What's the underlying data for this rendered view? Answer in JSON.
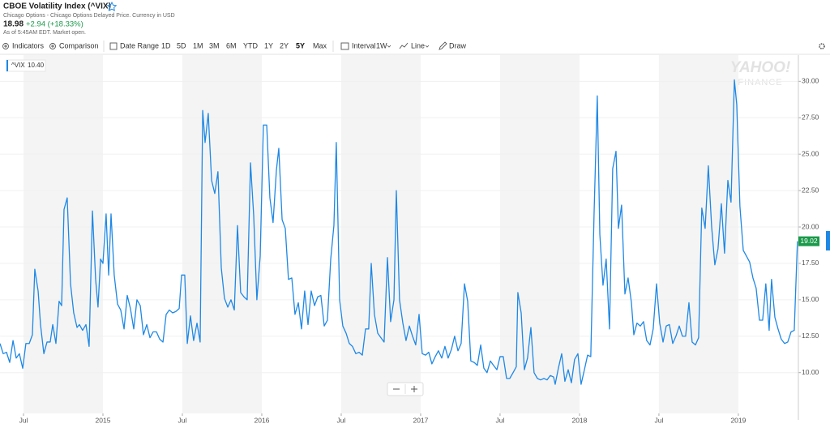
{
  "header": {
    "title": "CBOE Volatility Index (^VIX)",
    "subtitle": "Chicago Options - Chicago Options Delayed Price. Currency in USD",
    "price": "18.98",
    "change": "+2.94 (+18.33%)",
    "as_of": "As of 5:45AM EDT. Market open."
  },
  "toolbar": {
    "indicators": "Indicators",
    "comparison": "Comparison",
    "date_range": "Date Range",
    "ranges": [
      "1D",
      "5D",
      "1M",
      "3M",
      "6M",
      "YTD",
      "1Y",
      "2Y",
      "5Y",
      "Max"
    ],
    "interval": "Interval",
    "interval_value": "1W",
    "line": "Line",
    "draw": "Draw"
  },
  "watermark": [
    "YAHOO!",
    "FINANCE"
  ],
  "chart_data": {
    "type": "line",
    "legend_value": "10.40",
    "current_label": "19.02",
    "xlim": [
      2014.352,
      2019.378
    ],
    "xticks": [
      {
        "value": 2014.5,
        "label": "Jul"
      },
      2015,
      {
        "value": 2015.5,
        "label": "Jul"
      },
      2016,
      {
        "value": 2016.5,
        "label": "Jul"
      },
      2017,
      {
        "value": 2017.5,
        "label": "Jul"
      },
      2018,
      {
        "value": 2018.5,
        "label": "Jul"
      },
      2019
    ],
    "ylim": [
      7.2,
      31.8
    ],
    "yticks": [
      {
        "value": 10,
        "label": "10.00"
      },
      {
        "value": 12.5,
        "label": "12.50"
      },
      {
        "value": 15,
        "label": "15.00"
      },
      {
        "value": 17.5,
        "label": "17.50"
      },
      {
        "value": 20,
        "label": "20.00"
      },
      {
        "value": 22.5,
        "label": "22.50"
      },
      {
        "value": 25,
        "label": "25.00"
      },
      {
        "value": 27.5,
        "label": "27.50"
      },
      {
        "value": 30,
        "label": "30.00"
      }
    ],
    "grid": true,
    "x": [
      2014.352,
      2014.372,
      2014.393,
      2014.413,
      2014.434,
      2014.454,
      2014.474,
      2014.495,
      2014.515,
      2014.536,
      2014.556,
      2014.571,
      2014.592,
      2014.607,
      2014.628,
      2014.648,
      2014.668,
      2014.684,
      2014.704,
      2014.724,
      2014.74,
      2014.755,
      2014.775,
      2014.796,
      2014.816,
      2014.837,
      2014.852,
      2014.872,
      2014.893,
      2014.913,
      2014.934,
      2014.954,
      2014.969,
      2014.985,
      2015.0,
      2015.02,
      2015.036,
      2015.051,
      2015.071,
      2015.092,
      2015.112,
      2015.133,
      2015.153,
      2015.173,
      2015.194,
      2015.214,
      2015.235,
      2015.255,
      2015.276,
      2015.296,
      2015.316,
      2015.337,
      2015.357,
      2015.378,
      2015.398,
      2015.418,
      2015.439,
      2015.459,
      2015.48,
      2015.495,
      2015.515,
      2015.531,
      2015.551,
      2015.571,
      2015.592,
      2015.612,
      2015.628,
      2015.643,
      2015.663,
      2015.684,
      2015.704,
      2015.724,
      2015.745,
      2015.765,
      2015.786,
      2015.806,
      2015.827,
      2015.847,
      2015.867,
      2015.888,
      2015.908,
      2015.929,
      2015.949,
      2015.969,
      2015.99,
      2016.01,
      2016.031,
      2016.051,
      2016.071,
      2016.092,
      2016.107,
      2016.128,
      2016.148,
      2016.168,
      2016.189,
      2016.209,
      2016.23,
      2016.25,
      2016.27,
      2016.291,
      2016.311,
      2016.332,
      2016.352,
      2016.372,
      2016.393,
      2016.413,
      2016.434,
      2016.454,
      2016.469,
      2016.49,
      2016.51,
      2016.531,
      2016.551,
      2016.571,
      2016.592,
      2016.612,
      2016.633,
      2016.653,
      2016.673,
      2016.689,
      2016.709,
      2016.73,
      2016.75,
      2016.77,
      2016.791,
      2016.811,
      2016.832,
      2016.847,
      2016.867,
      2016.888,
      2016.908,
      2016.929,
      2016.949,
      2016.969,
      2016.99,
      2017.01,
      2017.031,
      2017.051,
      2017.071,
      2017.092,
      2017.112,
      2017.133,
      2017.153,
      2017.173,
      2017.194,
      2017.214,
      2017.235,
      2017.255,
      2017.276,
      2017.296,
      2017.316,
      2017.337,
      2017.357,
      2017.378,
      2017.398,
      2017.418,
      2017.439,
      2017.459,
      2017.48,
      2017.5,
      2017.52,
      2017.541,
      2017.561,
      2017.582,
      2017.602,
      2017.612,
      2017.633,
      2017.653,
      2017.673,
      2017.694,
      2017.714,
      2017.735,
      2017.755,
      2017.776,
      2017.796,
      2017.816,
      2017.837,
      2017.847,
      2017.867,
      2017.888,
      2017.908,
      2017.929,
      2017.949,
      2017.969,
      2017.99,
      2018.01,
      2018.031,
      2018.051,
      2018.071,
      2018.092,
      2018.112,
      2018.128,
      2018.148,
      2018.168,
      2018.189,
      2018.209,
      2018.23,
      2018.245,
      2018.265,
      2018.286,
      2018.306,
      2018.327,
      2018.342,
      2018.362,
      2018.383,
      2018.403,
      2018.423,
      2018.444,
      2018.464,
      2018.485,
      2018.505,
      2018.526,
      2018.546,
      2018.566,
      2018.587,
      2018.607,
      2018.628,
      2018.648,
      2018.668,
      2018.689,
      2018.709,
      2018.73,
      2018.75,
      2018.77,
      2018.791,
      2018.811,
      2018.832,
      2018.852,
      2018.872,
      2018.893,
      2018.913,
      2018.934,
      2018.954,
      2018.975,
      2018.99,
      2019.01,
      2019.031,
      2019.051,
      2019.071,
      2019.092,
      2019.112,
      2019.133,
      2019.153,
      2019.173,
      2019.194,
      2019.209,
      2019.23,
      2019.25,
      2019.27,
      2019.291,
      2019.311,
      2019.332,
      2019.352,
      2019.372
    ],
    "series": [
      {
        "name": "^VIX",
        "color": "#1e88e5",
        "values": [
          12.0,
          11.3,
          11.4,
          10.7,
          12.2,
          11.0,
          11.3,
          10.3,
          12.0,
          12.0,
          12.6,
          17.1,
          15.6,
          13.3,
          11.3,
          12.1,
          12.1,
          13.3,
          12.0,
          14.9,
          14.6,
          21.2,
          22.0,
          16.1,
          14.1,
          13.1,
          13.3,
          12.9,
          13.3,
          11.8,
          21.1,
          16.4,
          14.5,
          17.8,
          17.5,
          20.9,
          16.7,
          20.9,
          16.7,
          14.7,
          14.3,
          13.0,
          15.3,
          14.4,
          13.0,
          15.0,
          14.6,
          12.6,
          13.3,
          12.4,
          12.8,
          12.8,
          12.3,
          12.1,
          14.0,
          14.3,
          14.1,
          14.2,
          14.4,
          16.7,
          16.7,
          12.0,
          13.9,
          12.2,
          13.4,
          12.1,
          28.0,
          25.8,
          27.8,
          23.2,
          22.3,
          23.8,
          17.2,
          15.1,
          14.5,
          15.0,
          14.3,
          20.1,
          15.5,
          15.2,
          15.0,
          24.4,
          20.8,
          15.0,
          18.0,
          27.0,
          27.0,
          22.0,
          20.3,
          23.9,
          25.4,
          20.5,
          19.9,
          16.4,
          16.5,
          14.0,
          14.8,
          13.0,
          15.6,
          13.3,
          15.6,
          14.6,
          15.2,
          15.3,
          13.2,
          13.6,
          17.8,
          20.1,
          25.8,
          15.0,
          13.2,
          12.7,
          12.0,
          11.8,
          11.3,
          11.4,
          11.2,
          13.0,
          13.0,
          17.5,
          14.0,
          12.7,
          12.4,
          12.1,
          17.9,
          13.5,
          15.0,
          22.5,
          15.0,
          13.4,
          12.2,
          13.2,
          12.5,
          11.9,
          14.0,
          11.3,
          11.2,
          11.4,
          10.6,
          11.1,
          11.5,
          11.0,
          11.8,
          11.0,
          11.6,
          12.5,
          11.5,
          12.0,
          16.1,
          14.9,
          10.8,
          10.7,
          10.5,
          11.9,
          10.3,
          10.0,
          10.8,
          10.5,
          10.2,
          11.1,
          11.1,
          9.6,
          9.6,
          10.0,
          10.4,
          15.5,
          14.1,
          10.2,
          11.0,
          13.1,
          10.0,
          9.6,
          9.5,
          9.6,
          9.5,
          9.8,
          9.7,
          9.2,
          10.3,
          11.3,
          9.4,
          10.2,
          9.3,
          10.9,
          11.3,
          9.2,
          10.2,
          11.2,
          11.1,
          21.0,
          29.0,
          19.5,
          16.0,
          17.8,
          13.0,
          24.0,
          25.2,
          19.9,
          21.5,
          15.4,
          16.5,
          14.8,
          12.6,
          13.4,
          13.2,
          13.5,
          12.2,
          11.9,
          13.0,
          16.1,
          13.4,
          12.1,
          13.2,
          13.3,
          12.0,
          12.5,
          13.2,
          12.5,
          12.5,
          14.8,
          12.1,
          11.9,
          12.4,
          21.3,
          19.9,
          24.2,
          20.0,
          17.4,
          18.5,
          21.6,
          18.2,
          23.2,
          21.7,
          30.1,
          28.4,
          21.4,
          18.4,
          18.0,
          17.6,
          16.5,
          15.8,
          13.6,
          13.6,
          16.1,
          12.9,
          16.4,
          13.8,
          13.0,
          12.3,
          12.0,
          12.1,
          12.8,
          12.9,
          19.02
        ]
      }
    ]
  }
}
